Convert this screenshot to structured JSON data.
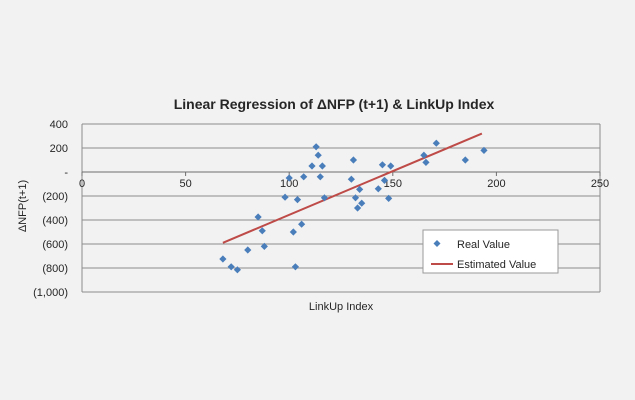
{
  "chart_data": {
    "type": "scatter",
    "title": "Linear Regression of ΔNFP (t+1) & LinkUp Index",
    "xlabel": "LinkUp Index",
    "ylabel": "ΔNFP(t+1)",
    "xlim": [
      0,
      250
    ],
    "ylim": [
      -1000,
      400
    ],
    "x_ticks": [
      0,
      50,
      100,
      150,
      200,
      250
    ],
    "x_tick_labels": [
      "0",
      "50",
      "100",
      "150",
      "200",
      "250"
    ],
    "y_ticks": [
      400,
      200,
      0,
      -200,
      -400,
      -600,
      -800,
      -1000
    ],
    "y_tick_labels": [
      "400",
      "200",
      "-",
      "(200)",
      "(400)",
      "(600)",
      "(800)",
      "(1,000)"
    ],
    "grid": "horizontal",
    "legend_position": "lower-right",
    "colors": {
      "real": "#4a7ebb",
      "estimated": "#be4b48"
    },
    "series": [
      {
        "name": "Real Value",
        "kind": "scatter",
        "points": [
          [
            68,
            -725
          ],
          [
            72,
            -790
          ],
          [
            75,
            -815
          ],
          [
            80,
            -650
          ],
          [
            85,
            -375
          ],
          [
            87,
            -490
          ],
          [
            88,
            -620
          ],
          [
            98,
            -210
          ],
          [
            100,
            -50
          ],
          [
            102,
            -500
          ],
          [
            103,
            -790
          ],
          [
            104,
            -230
          ],
          [
            106,
            -435
          ],
          [
            107,
            -40
          ],
          [
            111,
            50
          ],
          [
            113,
            210
          ],
          [
            114,
            140
          ],
          [
            115,
            -40
          ],
          [
            116,
            50
          ],
          [
            117,
            -215
          ],
          [
            130,
            -60
          ],
          [
            131,
            100
          ],
          [
            132,
            -215
          ],
          [
            133,
            -300
          ],
          [
            134,
            -145
          ],
          [
            135,
            -260
          ],
          [
            143,
            -140
          ],
          [
            145,
            60
          ],
          [
            146,
            -70
          ],
          [
            148,
            -220
          ],
          [
            149,
            50
          ],
          [
            165,
            140
          ],
          [
            166,
            80
          ],
          [
            171,
            240
          ],
          [
            185,
            100
          ],
          [
            194,
            180
          ]
        ]
      },
      {
        "name": "Estimated Value",
        "kind": "line",
        "points": [
          [
            68,
            -590
          ],
          [
            193,
            320
          ]
        ]
      }
    ]
  }
}
